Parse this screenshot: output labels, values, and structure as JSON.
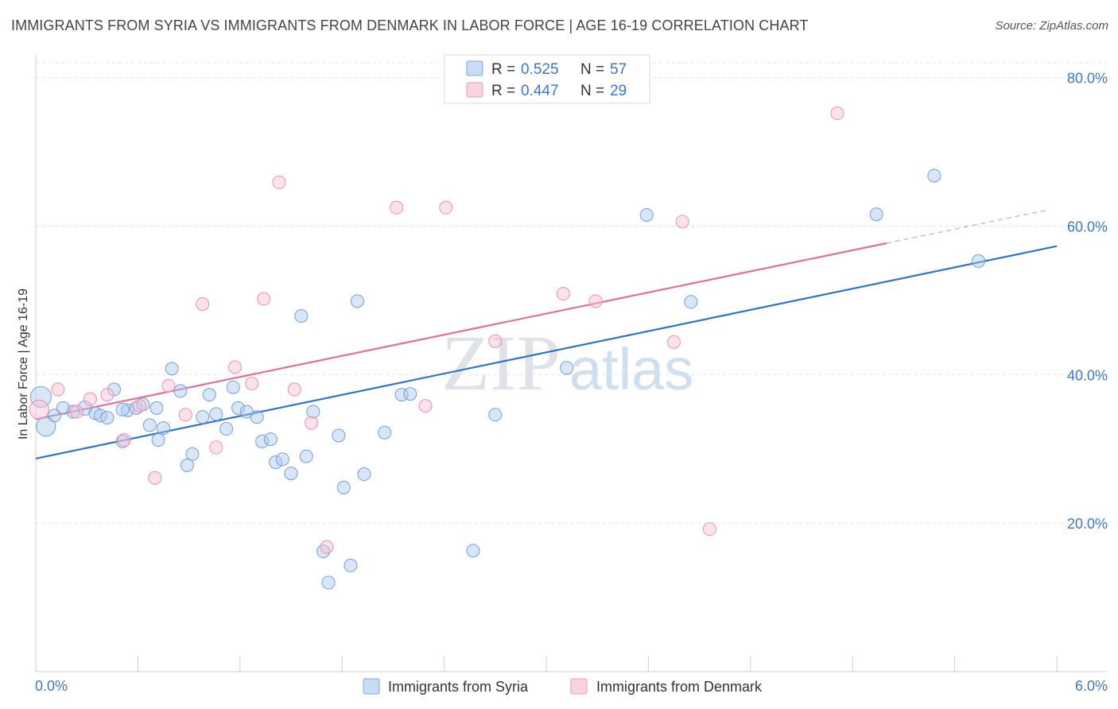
{
  "title": "IMMIGRANTS FROM SYRIA VS IMMIGRANTS FROM DENMARK IN LABOR FORCE | AGE 16-19 CORRELATION CHART",
  "source": "Source: ZipAtlas.com",
  "watermark": {
    "zip": "ZIP",
    "atlas": "atlas"
  },
  "colors": {
    "syria": "#7aaae8",
    "syria_line": "#2f73d0",
    "denmark": "#f29ab6",
    "denmark_line": "#e46e98",
    "axis_text": "#3a78c9"
  },
  "legend": {
    "rows": [
      {
        "r_label": "R =",
        "r_value": "0.525",
        "n_label": "N =",
        "n_value": "57"
      },
      {
        "r_label": "R =",
        "r_value": "0.447",
        "n_label": "N =",
        "n_value": "29"
      }
    ]
  },
  "chart_data": {
    "type": "scatter",
    "title": "IMMIGRANTS FROM SYRIA VS IMMIGRANTS FROM DENMARK IN LABOR FORCE | AGE 16-19 CORRELATION CHART",
    "ylabel": "In Labor Force | Age 16-19",
    "xlabel": "",
    "xlim": [
      0,
      6
    ],
    "ylim": [
      0,
      82
    ],
    "x_tick_labels": [
      "0.0%",
      "6.0%"
    ],
    "y_ticks": [
      20,
      40,
      60,
      80
    ],
    "y_tick_labels": [
      "20.0%",
      "40.0%",
      "60.0%",
      "80.0%"
    ],
    "grid": true,
    "legend_position": "top-center",
    "series": [
      {
        "name": "Immigrants from Syria",
        "color": "#7aaae8",
        "r": 0.525,
        "n": 57,
        "trend": {
          "x": [
            0,
            6
          ],
          "y": [
            28.7,
            57.3
          ]
        },
        "points": [
          [
            0.03,
            37.0,
            13
          ],
          [
            0.06,
            33.0,
            12
          ],
          [
            0.11,
            34.5,
            8
          ],
          [
            0.29,
            35.5,
            9
          ],
          [
            0.22,
            35.0,
            8
          ],
          [
            0.35,
            34.8,
            8
          ],
          [
            0.38,
            34.5,
            8
          ],
          [
            0.42,
            34.2,
            8
          ],
          [
            0.46,
            38.0,
            8
          ],
          [
            0.51,
            31.0,
            8
          ],
          [
            0.54,
            35.2,
            8
          ],
          [
            0.59,
            35.5,
            8
          ],
          [
            0.63,
            36.0,
            8
          ],
          [
            0.67,
            33.2,
            8
          ],
          [
            0.72,
            31.2,
            8
          ],
          [
            0.75,
            32.8,
            8
          ],
          [
            0.8,
            40.8,
            8
          ],
          [
            0.85,
            37.8,
            8
          ],
          [
            0.89,
            27.8,
            8
          ],
          [
            0.92,
            29.3,
            8
          ],
          [
            0.98,
            34.3,
            8
          ],
          [
            1.02,
            37.3,
            8
          ],
          [
            1.06,
            34.7,
            8
          ],
          [
            1.12,
            32.7,
            8
          ],
          [
            1.16,
            38.3,
            8
          ],
          [
            1.19,
            35.5,
            8
          ],
          [
            1.24,
            35.0,
            8
          ],
          [
            1.3,
            34.3,
            8
          ],
          [
            1.33,
            31.0,
            8
          ],
          [
            1.38,
            31.3,
            8
          ],
          [
            1.41,
            28.2,
            8
          ],
          [
            1.45,
            28.6,
            8
          ],
          [
            1.5,
            26.7,
            8
          ],
          [
            1.56,
            47.9,
            8
          ],
          [
            1.59,
            29.0,
            8
          ],
          [
            1.63,
            35.0,
            8
          ],
          [
            1.69,
            16.2,
            8
          ],
          [
            1.72,
            12.0,
            8
          ],
          [
            1.78,
            31.8,
            8
          ],
          [
            1.81,
            24.8,
            8
          ],
          [
            1.85,
            14.3,
            8
          ],
          [
            1.89,
            49.9,
            8
          ],
          [
            1.93,
            26.6,
            8
          ],
          [
            2.05,
            32.2,
            8
          ],
          [
            2.15,
            37.3,
            8
          ],
          [
            2.2,
            37.4,
            8
          ],
          [
            2.57,
            16.3,
            8
          ],
          [
            2.7,
            34.6,
            8
          ],
          [
            3.12,
            40.9,
            8
          ],
          [
            3.59,
            61.5,
            8
          ],
          [
            3.85,
            49.8,
            8
          ],
          [
            4.94,
            61.6,
            8
          ],
          [
            5.28,
            66.8,
            8
          ],
          [
            5.54,
            55.3,
            8
          ],
          [
            0.51,
            35.3,
            8
          ],
          [
            0.16,
            35.5,
            8
          ],
          [
            0.71,
            35.5,
            8
          ]
        ]
      },
      {
        "name": "Immigrants from Denmark",
        "color": "#f29ab6",
        "r": 0.447,
        "n": 29,
        "trend": {
          "x": [
            0,
            5.0
          ],
          "y": [
            34.0,
            57.7
          ]
        },
        "trend_dashed": {
          "x": [
            5.0,
            5.95
          ],
          "y": [
            57.7,
            62.2
          ]
        },
        "points": [
          [
            0.02,
            35.3,
            12
          ],
          [
            0.13,
            38.0,
            8
          ],
          [
            0.24,
            35.0,
            8
          ],
          [
            0.32,
            36.7,
            8
          ],
          [
            0.42,
            37.3,
            8
          ],
          [
            0.52,
            31.2,
            8
          ],
          [
            0.61,
            35.8,
            8
          ],
          [
            0.7,
            26.1,
            8
          ],
          [
            0.78,
            38.5,
            8
          ],
          [
            0.88,
            34.6,
            8
          ],
          [
            0.98,
            49.5,
            8
          ],
          [
            1.06,
            30.2,
            8
          ],
          [
            1.17,
            41.0,
            8
          ],
          [
            1.27,
            38.8,
            8
          ],
          [
            1.34,
            50.2,
            8
          ],
          [
            1.43,
            65.9,
            8
          ],
          [
            1.52,
            38.0,
            8
          ],
          [
            1.62,
            33.5,
            8
          ],
          [
            1.71,
            16.8,
            8
          ],
          [
            2.12,
            62.5,
            8
          ],
          [
            2.29,
            35.8,
            8
          ],
          [
            2.41,
            62.5,
            8
          ],
          [
            2.7,
            44.5,
            8
          ],
          [
            3.1,
            50.9,
            8
          ],
          [
            3.29,
            49.9,
            8
          ],
          [
            3.75,
            44.4,
            8
          ],
          [
            3.8,
            60.6,
            8
          ],
          [
            3.96,
            19.2,
            8
          ],
          [
            4.71,
            75.2,
            8
          ]
        ]
      }
    ]
  }
}
